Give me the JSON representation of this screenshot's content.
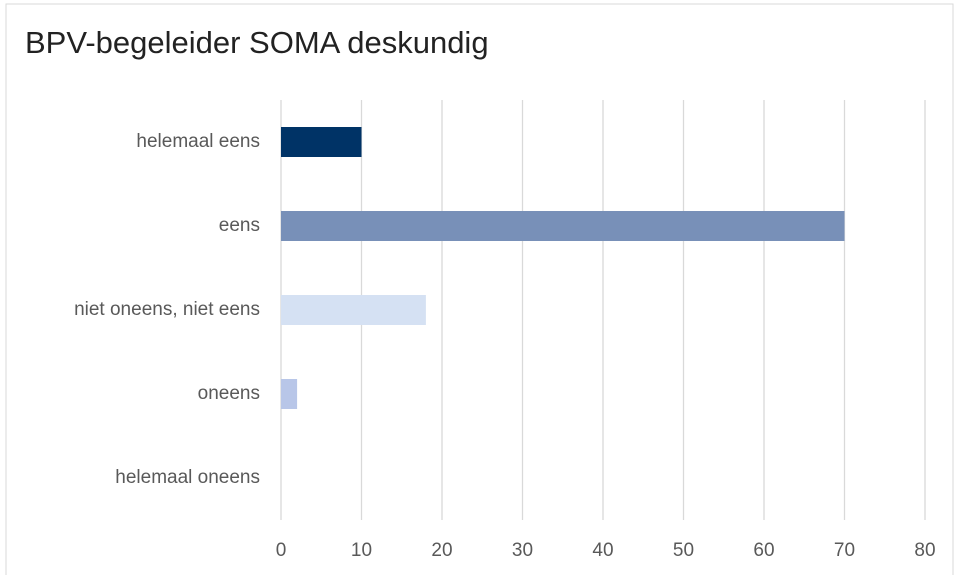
{
  "chart_data": {
    "type": "hbar",
    "title": "BPV-begeleider SOMA deskundig",
    "categories": [
      "helemaal eens",
      "eens",
      "niet oneens, niet eens",
      "oneens",
      "helemaal oneens"
    ],
    "values": [
      10,
      70,
      18,
      2,
      0
    ],
    "colors": [
      "#003366",
      "#7890b8",
      "#d5e1f3",
      "#b8c6e8",
      "#a8b8dc"
    ],
    "xlim": [
      0,
      80
    ],
    "xticks": [
      0,
      10,
      20,
      30,
      40,
      50,
      60,
      70,
      80
    ],
    "grid": true
  }
}
